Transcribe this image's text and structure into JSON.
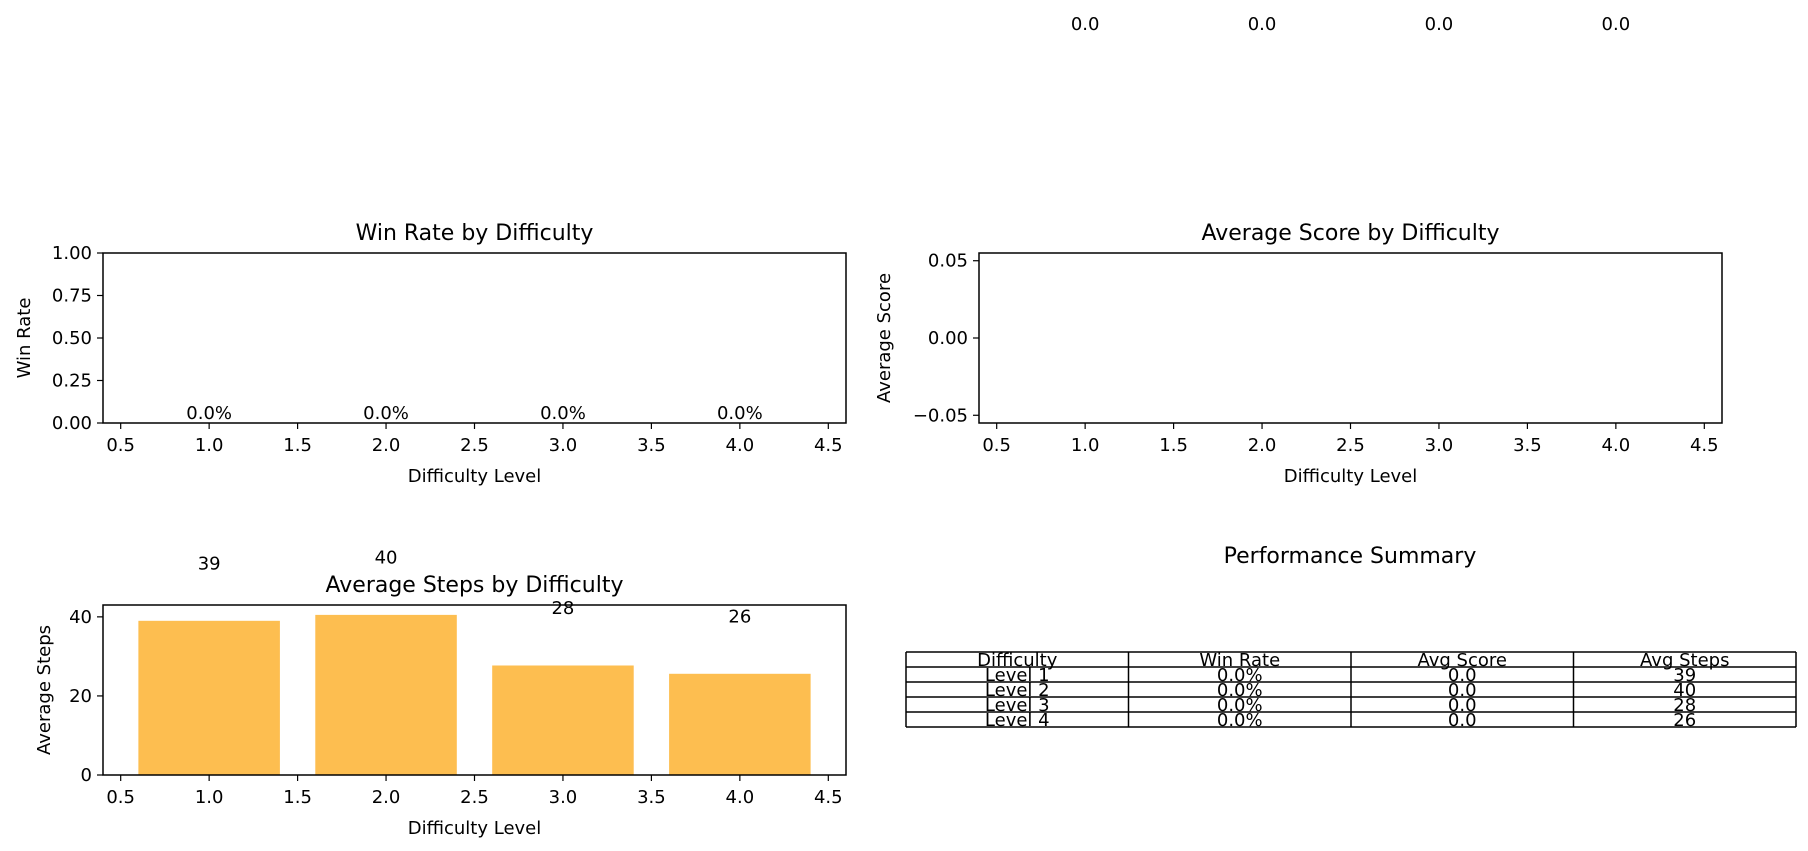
{
  "colors": {
    "bar": "#fdbe50",
    "axis": "#000000",
    "background": "#ffffff"
  },
  "chart_data": [
    {
      "id": "win_rate",
      "type": "bar",
      "title": "Win Rate by Difficulty",
      "xlabel": "Difficulty Level",
      "ylabel": "Win Rate",
      "x": [
        1,
        2,
        3,
        4
      ],
      "values": [
        0.0,
        0.0,
        0.0,
        0.0
      ],
      "data_labels": [
        "0.0%",
        "0.0%",
        "0.0%",
        "0.0%"
      ],
      "xlim": [
        0.4,
        4.6
      ],
      "ylim": [
        0,
        1
      ],
      "xticks": [
        0.5,
        1.0,
        1.5,
        2.0,
        2.5,
        3.0,
        3.5,
        4.0,
        4.5
      ],
      "xtick_labels": [
        "0.5",
        "1.0",
        "1.5",
        "2.0",
        "2.5",
        "3.0",
        "3.5",
        "4.0",
        "4.5"
      ],
      "yticks": [
        0,
        0.25,
        0.5,
        0.75,
        1.0
      ],
      "ytick_labels": [
        "0.00",
        "0.25",
        "0.50",
        "0.75",
        "1.00"
      ],
      "grid": false
    },
    {
      "id": "avg_score",
      "type": "bar",
      "title": "Average Score by Difficulty",
      "xlabel": "Difficulty Level",
      "ylabel": "Average Score",
      "x": [
        1,
        2,
        3,
        4
      ],
      "values": [
        0.0,
        0.0,
        0.0,
        0.0
      ],
      "data_labels": [
        "0.0",
        "0.0",
        "0.0",
        "0.0"
      ],
      "xlim": [
        0.4,
        4.6
      ],
      "ylim": [
        -0.055,
        0.055
      ],
      "xticks": [
        0.5,
        1.0,
        1.5,
        2.0,
        2.5,
        3.0,
        3.5,
        4.0,
        4.5
      ],
      "xtick_labels": [
        "0.5",
        "1.0",
        "1.5",
        "2.0",
        "2.5",
        "3.0",
        "3.5",
        "4.0",
        "4.5"
      ],
      "yticks": [
        -0.05,
        0.0,
        0.05
      ],
      "ytick_labels": [
        "−0.05",
        "0.00",
        "0.05"
      ],
      "grid": false
    },
    {
      "id": "avg_steps",
      "type": "bar",
      "title": "Average Steps by Difficulty",
      "xlabel": "Difficulty Level",
      "ylabel": "Average Steps",
      "x": [
        1,
        2,
        3,
        4
      ],
      "values": [
        39,
        40.5,
        27.7,
        25.6
      ],
      "data_labels": [
        "39",
        "40",
        "28",
        "26"
      ],
      "xlim": [
        0.4,
        4.6
      ],
      "ylim": [
        0,
        43
      ],
      "xticks": [
        0.5,
        1.0,
        1.5,
        2.0,
        2.5,
        3.0,
        3.5,
        4.0,
        4.5
      ],
      "xtick_labels": [
        "0.5",
        "1.0",
        "1.5",
        "2.0",
        "2.5",
        "3.0",
        "3.5",
        "4.0",
        "4.5"
      ],
      "yticks": [
        0,
        20,
        40
      ],
      "ytick_labels": [
        "0",
        "20",
        "40"
      ],
      "grid": false
    },
    {
      "id": "summary",
      "type": "table",
      "title": "Performance Summary",
      "columns": [
        "Difficulty",
        "Win Rate",
        "Avg Score",
        "Avg Steps"
      ],
      "rows": [
        [
          "Level 1",
          "0.0%",
          "0.0",
          "39"
        ],
        [
          "Level 2",
          "0.0%",
          "0.0",
          "40"
        ],
        [
          "Level 3",
          "0.0%",
          "0.0",
          "28"
        ],
        [
          "Level 4",
          "0.0%",
          "0.0",
          "26"
        ]
      ]
    }
  ]
}
